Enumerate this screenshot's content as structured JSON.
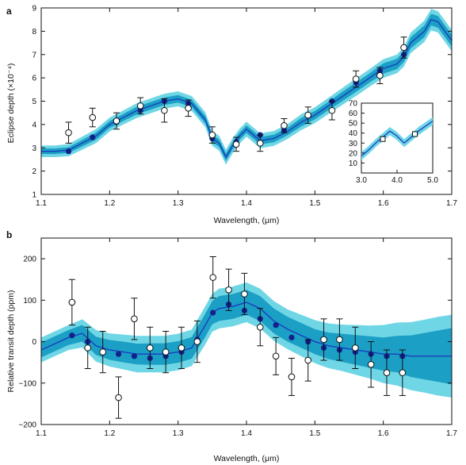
{
  "chart_data": [
    {
      "panel_label": "a",
      "type": "line",
      "xlabel": "Wavelength, (μm)",
      "ylabel": "Eclipse depth (×10⁻⁴)",
      "xlim": [
        1.1,
        1.7
      ],
      "ylim": [
        1,
        9
      ],
      "xticks": [
        1.1,
        1.2,
        1.3,
        1.4,
        1.5,
        1.6,
        1.7
      ],
      "xtick_labels": [
        "1.1",
        "1.2",
        "1.3",
        "1.4",
        "1.5",
        "1.6",
        "1.7"
      ],
      "yticks": [
        1,
        2,
        3,
        4,
        5,
        6,
        7,
        8,
        9
      ],
      "ytick_labels": [
        "1",
        "2",
        "3",
        "4",
        "5",
        "6",
        "7",
        "8",
        "9"
      ],
      "model_band": {
        "x": [
          1.1,
          1.12,
          1.14,
          1.16,
          1.18,
          1.2,
          1.22,
          1.24,
          1.26,
          1.28,
          1.3,
          1.32,
          1.34,
          1.35,
          1.36,
          1.37,
          1.38,
          1.39,
          1.4,
          1.42,
          1.44,
          1.46,
          1.48,
          1.5,
          1.52,
          1.54,
          1.56,
          1.58,
          1.6,
          1.62,
          1.63,
          1.64,
          1.66,
          1.67,
          1.68,
          1.7
        ],
        "y": [
          2.85,
          2.85,
          2.9,
          3.2,
          3.5,
          4.0,
          4.3,
          4.6,
          4.8,
          5.0,
          5.1,
          4.9,
          4.2,
          3.4,
          3.2,
          2.6,
          3.1,
          3.5,
          3.8,
          3.3,
          3.4,
          3.7,
          4.1,
          4.4,
          4.8,
          5.2,
          5.6,
          6.0,
          6.4,
          6.6,
          6.9,
          7.5,
          8.0,
          8.5,
          8.4,
          7.6
        ],
        "inner": [
          0.12,
          0.12,
          0.12,
          0.14,
          0.15,
          0.15,
          0.15,
          0.16,
          0.16,
          0.16,
          0.16,
          0.16,
          0.16,
          0.16,
          0.16,
          0.16,
          0.16,
          0.16,
          0.16,
          0.16,
          0.16,
          0.16,
          0.18,
          0.18,
          0.18,
          0.2,
          0.2,
          0.2,
          0.22,
          0.22,
          0.22,
          0.24,
          0.25,
          0.25,
          0.25,
          0.25
        ],
        "outer": [
          0.25,
          0.25,
          0.26,
          0.28,
          0.3,
          0.3,
          0.3,
          0.32,
          0.32,
          0.32,
          0.32,
          0.32,
          0.32,
          0.32,
          0.32,
          0.32,
          0.32,
          0.32,
          0.32,
          0.32,
          0.32,
          0.32,
          0.34,
          0.34,
          0.35,
          0.36,
          0.38,
          0.38,
          0.4,
          0.4,
          0.42,
          0.44,
          0.46,
          0.46,
          0.46,
          0.46
        ]
      },
      "model_binned": {
        "x": [
          1.14,
          1.175,
          1.21,
          1.245,
          1.28,
          1.315,
          1.35,
          1.385,
          1.42,
          1.455,
          1.49,
          1.525,
          1.56,
          1.595,
          1.63
        ],
        "y": [
          2.85,
          3.45,
          4.1,
          4.6,
          5.0,
          4.9,
          3.4,
          3.25,
          3.55,
          3.75,
          4.4,
          5.0,
          5.8,
          6.3,
          7.0
        ]
      },
      "observed": {
        "x": [
          1.14,
          1.175,
          1.21,
          1.245,
          1.28,
          1.315,
          1.35,
          1.385,
          1.42,
          1.455,
          1.49,
          1.525,
          1.56,
          1.595,
          1.63
        ],
        "y": [
          3.65,
          4.3,
          4.15,
          4.8,
          4.6,
          4.7,
          3.55,
          3.15,
          3.2,
          3.95,
          4.4,
          4.6,
          5.95,
          6.1,
          7.3
        ],
        "err": [
          0.45,
          0.4,
          0.35,
          0.35,
          0.5,
          0.35,
          0.35,
          0.3,
          0.35,
          0.3,
          0.35,
          0.4,
          0.35,
          0.35,
          0.45
        ]
      },
      "inset": {
        "xlim": [
          3.0,
          5.0
        ],
        "ylim": [
          0,
          70
        ],
        "xticks": [
          3.0,
          4.0,
          5.0
        ],
        "xtick_labels": [
          "3.0",
          "4.0",
          "5.0"
        ],
        "yticks": [
          10,
          20,
          30,
          40,
          50,
          60,
          70
        ],
        "ytick_labels": [
          "10",
          "20",
          "30",
          "40",
          "50",
          "60",
          "70"
        ],
        "model": {
          "x": [
            3.0,
            3.2,
            3.4,
            3.6,
            3.8,
            4.0,
            4.2,
            4.4,
            4.6,
            4.8,
            5.0
          ],
          "y": [
            17,
            23,
            30,
            36,
            42,
            37,
            30,
            36,
            42,
            47,
            52
          ]
        },
        "observed": {
          "x": [
            3.6,
            4.5
          ],
          "y": [
            34,
            39
          ]
        }
      }
    },
    {
      "panel_label": "b",
      "type": "line",
      "xlabel": "Wavelength, (μm)",
      "ylabel": "Relative transit depth (ppm)",
      "xlim": [
        1.1,
        1.7
      ],
      "ylim": [
        -200,
        250
      ],
      "xticks": [
        1.1,
        1.2,
        1.3,
        1.4,
        1.5,
        1.6,
        1.7
      ],
      "xtick_labels": [
        "1.1",
        "1.2",
        "1.3",
        "1.4",
        "1.5",
        "1.6",
        "1.7"
      ],
      "yticks": [
        -200,
        -100,
        0,
        100,
        200
      ],
      "ytick_labels": [
        "−200",
        "−100",
        "0",
        "100",
        "200"
      ],
      "model_band": {
        "x": [
          1.1,
          1.14,
          1.16,
          1.18,
          1.2,
          1.22,
          1.24,
          1.26,
          1.28,
          1.3,
          1.32,
          1.34,
          1.35,
          1.36,
          1.38,
          1.4,
          1.42,
          1.44,
          1.46,
          1.48,
          1.5,
          1.52,
          1.54,
          1.56,
          1.58,
          1.6,
          1.62,
          1.64,
          1.66,
          1.68,
          1.7
        ],
        "y": [
          -20,
          10,
          20,
          -10,
          -20,
          -25,
          -30,
          -30,
          -30,
          -25,
          -15,
          40,
          70,
          80,
          85,
          95,
          80,
          50,
          30,
          15,
          0,
          -10,
          -15,
          -20,
          -25,
          -30,
          -30,
          -35,
          -35,
          -35,
          -35
        ],
        "inner": [
          18,
          18,
          20,
          22,
          24,
          25,
          25,
          26,
          26,
          26,
          26,
          28,
          28,
          30,
          30,
          30,
          30,
          30,
          30,
          30,
          30,
          32,
          34,
          36,
          38,
          40,
          44,
          50,
          56,
          62,
          68
        ],
        "outer": [
          30,
          30,
          34,
          38,
          40,
          42,
          44,
          44,
          44,
          44,
          44,
          46,
          46,
          48,
          48,
          48,
          48,
          48,
          48,
          50,
          52,
          54,
          56,
          60,
          64,
          70,
          76,
          82,
          88,
          95,
          100
        ]
      },
      "model_binned": {
        "x": [
          1.145,
          1.168,
          1.19,
          1.213,
          1.236,
          1.259,
          1.282,
          1.305,
          1.328,
          1.351,
          1.374,
          1.397,
          1.42,
          1.443,
          1.466,
          1.49,
          1.513,
          1.536,
          1.559,
          1.582,
          1.605,
          1.628
        ],
        "y": [
          15,
          0,
          -25,
          -30,
          -35,
          -40,
          -35,
          -25,
          5,
          70,
          90,
          75,
          55,
          40,
          10,
          0,
          -15,
          -20,
          -25,
          -30,
          -35,
          -35
        ]
      },
      "observed": {
        "x": [
          1.145,
          1.168,
          1.19,
          1.213,
          1.236,
          1.259,
          1.282,
          1.305,
          1.328,
          1.351,
          1.374,
          1.397,
          1.42,
          1.443,
          1.466,
          1.49,
          1.513,
          1.536,
          1.559,
          1.582,
          1.605,
          1.628
        ],
        "y": [
          95,
          -15,
          -25,
          -135,
          55,
          -15,
          -25,
          -15,
          0,
          155,
          125,
          115,
          35,
          -35,
          -85,
          -45,
          5,
          5,
          -15,
          -55,
          -75,
          -75
        ],
        "err": [
          55,
          50,
          50,
          50,
          50,
          50,
          50,
          50,
          50,
          50,
          50,
          50,
          45,
          45,
          45,
          50,
          50,
          50,
          50,
          55,
          55,
          55
        ]
      }
    }
  ]
}
